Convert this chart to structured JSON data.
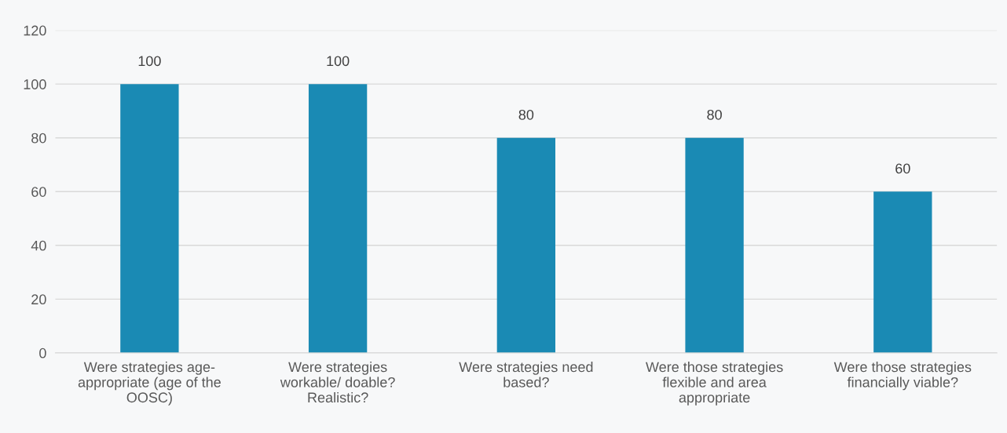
{
  "chart_data": {
    "type": "bar",
    "categories": [
      "Were strategies age-\nappropriate (age of the\nOOSC)",
      "Were strategies\nworkable/ doable?\nRealistic?",
      "Were strategies need\nbased?",
      "Were those strategies\nflexible and area\nappropriate",
      "Were those strategies\nfinancially viable?"
    ],
    "values": [
      100,
      100,
      80,
      80,
      60
    ],
    "color": "#1a8ab4",
    "ylim": [
      0,
      120
    ],
    "yticks": [
      0,
      20,
      40,
      60,
      80,
      100,
      120
    ],
    "grid": "y",
    "data_labels": true
  }
}
